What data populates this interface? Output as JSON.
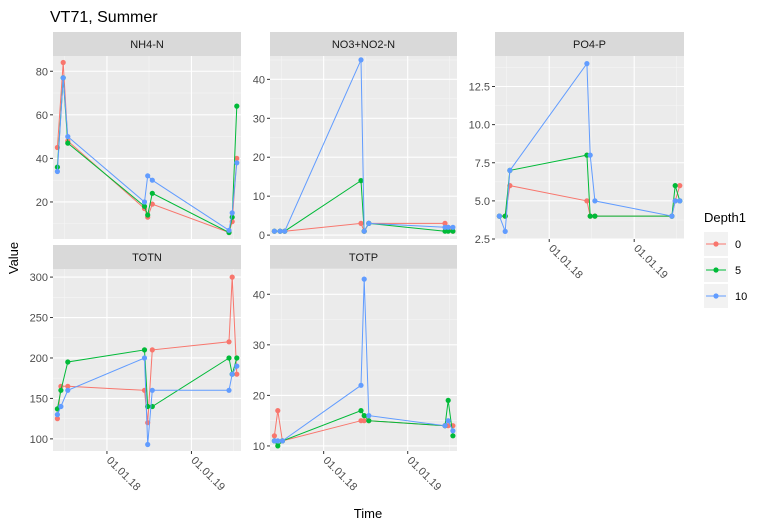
{
  "chart_data": {
    "type": "line",
    "title": "VT71, Summer",
    "xlabel": "Time",
    "ylabel": "Value",
    "x_ticks": [
      "01.01.18",
      "01.01.19"
    ],
    "legend": {
      "title": "Depth1",
      "position": "right",
      "entries": [
        {
          "name": "0",
          "color": "#F8766D"
        },
        {
          "name": "5",
          "color": "#00BA38"
        },
        {
          "name": "10",
          "color": "#619CFF"
        }
      ]
    },
    "panels": [
      {
        "name": "NH4-N",
        "ylim": [
          3,
          87
        ],
        "yticks": [
          "20",
          "40",
          "60",
          "80"
        ],
        "ytick_values": [
          20,
          40,
          60,
          80
        ],
        "series": [
          {
            "name": "0",
            "x": [
              "2017-06-01",
              "2017-06-26",
              "2017-07-16",
              "2018-06-12",
              "2018-06-26",
              "2018-07-16",
              "2019-06-12",
              "2019-06-26",
              "2019-07-16"
            ],
            "values": [
              45,
              84,
              48,
              17,
              13,
              19,
              6,
              11,
              40
            ]
          },
          {
            "name": "5",
            "x": [
              "2017-06-01",
              "2017-06-26",
              "2017-07-16",
              "2018-06-12",
              "2018-06-26",
              "2018-07-16",
              "2019-06-12",
              "2019-06-26",
              "2019-07-16"
            ],
            "values": [
              36,
              77,
              47,
              18,
              14,
              24,
              6,
              13,
              64
            ]
          },
          {
            "name": "10",
            "x": [
              "2017-06-01",
              "2017-06-26",
              "2017-07-16",
              "2018-06-12",
              "2018-06-26",
              "2018-07-16",
              "2019-06-12",
              "2019-06-26",
              "2019-07-16"
            ],
            "values": [
              34,
              77,
              50,
              20,
              32,
              30,
              7,
              15,
              38
            ]
          }
        ]
      },
      {
        "name": "NO3+NO2-N",
        "ylim": [
          -1,
          46
        ],
        "yticks": [
          "0",
          "10",
          "20",
          "30",
          "40"
        ],
        "ytick_values": [
          0,
          10,
          20,
          30,
          40
        ],
        "series": [
          {
            "name": "0",
            "x": [
              "2017-06-01",
              "2017-06-26",
              "2017-07-16",
              "2018-06-12",
              "2018-06-26",
              "2018-07-16",
              "2019-06-12",
              "2019-06-26",
              "2019-07-16"
            ],
            "values": [
              1,
              1,
              1,
              3,
              1,
              3,
              3,
              2,
              1
            ]
          },
          {
            "name": "5",
            "x": [
              "2017-06-01",
              "2017-06-26",
              "2017-07-16",
              "2018-06-12",
              "2018-06-26",
              "2018-07-16",
              "2019-06-12",
              "2019-06-26",
              "2019-07-16"
            ],
            "values": [
              1,
              1,
              1,
              14,
              1,
              3,
              1,
              1,
              1
            ]
          },
          {
            "name": "10",
            "x": [
              "2017-06-01",
              "2017-06-26",
              "2017-07-16",
              "2018-06-12",
              "2018-06-26",
              "2018-07-16",
              "2019-06-12",
              "2019-06-26",
              "2019-07-16"
            ],
            "values": [
              1,
              1,
              1,
              45,
              1,
              3,
              2,
              2,
              2
            ]
          }
        ]
      },
      {
        "name": "PO4-P",
        "ylim": [
          2.5,
          14.5
        ],
        "yticks": [
          "2.5",
          "5.0",
          "7.5",
          "10.0",
          "12.5"
        ],
        "ytick_values": [
          2.5,
          5.0,
          7.5,
          10.0,
          12.5
        ],
        "series": [
          {
            "name": "0",
            "x": [
              "2017-06-01",
              "2017-06-26",
              "2017-07-16",
              "2018-06-12",
              "2018-06-26",
              "2018-07-16",
              "2019-06-12",
              "2019-06-26",
              "2019-07-16"
            ],
            "values": [
              4,
              4,
              6,
              5,
              4,
              4,
              4,
              5,
              6
            ]
          },
          {
            "name": "5",
            "x": [
              "2017-06-01",
              "2017-06-26",
              "2017-07-16",
              "2018-06-12",
              "2018-06-26",
              "2018-07-16",
              "2019-06-12",
              "2019-06-26",
              "2019-07-16"
            ],
            "values": [
              4,
              4,
              7,
              8,
              4,
              4,
              4,
              6,
              5
            ]
          },
          {
            "name": "10",
            "x": [
              "2017-06-01",
              "2017-06-26",
              "2017-07-16",
              "2018-06-12",
              "2018-06-26",
              "2018-07-16",
              "2019-06-12",
              "2019-06-26",
              "2019-07-16"
            ],
            "values": [
              4,
              3,
              7,
              14,
              8,
              5,
              4,
              5,
              5
            ]
          }
        ]
      },
      {
        "name": "TOTN",
        "ylim": [
          85,
          310
        ],
        "yticks": [
          "100",
          "150",
          "200",
          "250",
          "300"
        ],
        "ytick_values": [
          100,
          150,
          200,
          250,
          300
        ],
        "series": [
          {
            "name": "0",
            "x": [
              "2017-06-01",
              "2017-06-16",
              "2017-07-16",
              "2018-06-12",
              "2018-06-26",
              "2018-07-16",
              "2019-06-12",
              "2019-06-26",
              "2019-07-16"
            ],
            "values": [
              125,
              165,
              165,
              160,
              120,
              210,
              220,
              300,
              180
            ]
          },
          {
            "name": "5",
            "x": [
              "2017-06-01",
              "2017-06-16",
              "2017-07-16",
              "2018-06-12",
              "2018-06-26",
              "2018-07-16",
              "2019-06-12",
              "2019-06-26",
              "2019-07-16"
            ],
            "values": [
              137,
              160,
              195,
              210,
              140,
              140,
              200,
              180,
              200
            ]
          },
          {
            "name": "10",
            "x": [
              "2017-06-01",
              "2017-06-16",
              "2017-07-16",
              "2018-06-12",
              "2018-06-26",
              "2018-07-16",
              "2019-06-12",
              "2019-06-26",
              "2019-07-16"
            ],
            "values": [
              130,
              140,
              160,
              200,
              93,
              160,
              160,
              180,
              190
            ]
          }
        ]
      },
      {
        "name": "TOTP",
        "ylim": [
          9,
          45
        ],
        "yticks": [
          "10",
          "20",
          "30",
          "40"
        ],
        "ytick_values": [
          10,
          20,
          30,
          40
        ],
        "series": [
          {
            "name": "0",
            "x": [
              "2017-06-01",
              "2017-06-16",
              "2017-07-06",
              "2018-06-12",
              "2018-06-26",
              "2018-07-16",
              "2019-06-12",
              "2019-06-26",
              "2019-07-16"
            ],
            "values": [
              12,
              17,
              11,
              15,
              15,
              15,
              14,
              14,
              14
            ]
          },
          {
            "name": "5",
            "x": [
              "2017-06-01",
              "2017-06-16",
              "2017-07-06",
              "2018-06-12",
              "2018-06-26",
              "2018-07-16",
              "2019-06-12",
              "2019-06-26",
              "2019-07-16"
            ],
            "values": [
              11,
              10,
              11,
              17,
              16,
              15,
              14,
              19,
              12
            ]
          },
          {
            "name": "10",
            "x": [
              "2017-06-01",
              "2017-06-16",
              "2017-07-06",
              "2018-06-12",
              "2018-06-26",
              "2018-07-16",
              "2019-06-12",
              "2019-06-26",
              "2019-07-16"
            ],
            "values": [
              11,
              11,
              11,
              22,
              43,
              16,
              14,
              15,
              13
            ]
          }
        ]
      }
    ]
  }
}
